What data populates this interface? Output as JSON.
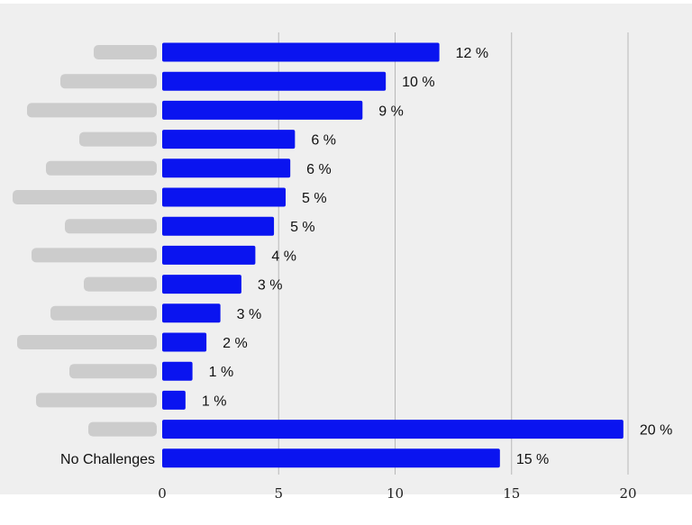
{
  "chart_data": {
    "type": "bar",
    "orientation": "horizontal",
    "title": "",
    "xlabel": "",
    "ylabel": "",
    "xlim": [
      0,
      20
    ],
    "x_ticks": [
      0,
      5,
      10,
      15,
      20
    ],
    "grid": "vertical",
    "legend": "none",
    "bar_color": "#0a14f0",
    "background_color": "#efefef",
    "categories": [
      "[blurred]",
      "[blurred]",
      "[blurred]",
      "[blurred]",
      "[blurred]",
      "[blurred]",
      "[blurred]",
      "[blurred]",
      "[blurred]",
      "[blurred]",
      "[blurred]",
      "[blurred]",
      "[blurred]",
      "[blurred]",
      "No Challenges"
    ],
    "blurred_categories": [
      true,
      true,
      true,
      true,
      true,
      true,
      true,
      true,
      true,
      true,
      true,
      true,
      true,
      true,
      false
    ],
    "values": [
      11.9,
      9.6,
      8.6,
      5.7,
      5.5,
      5.3,
      4.8,
      4.0,
      3.4,
      2.5,
      1.9,
      1.3,
      1.0,
      19.8,
      14.5
    ],
    "value_labels": [
      "12 %",
      "10 %",
      "9 %",
      "6 %",
      "6 %",
      "5 %",
      "5 %",
      "4 %",
      "3 %",
      "3 %",
      "2 %",
      "1 %",
      "1 %",
      "20 %",
      "15 %"
    ]
  }
}
